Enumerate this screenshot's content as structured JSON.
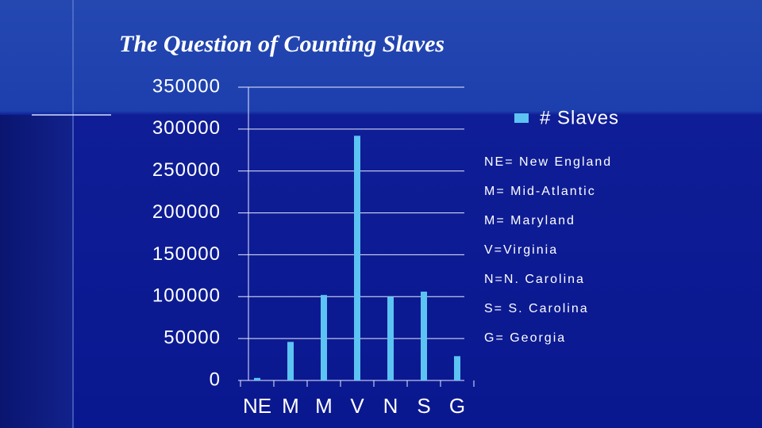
{
  "chart_data": {
    "type": "bar",
    "title": "The Question of Counting Slaves",
    "categories": [
      "NE",
      "M",
      "M",
      "V",
      "N",
      "S",
      "G"
    ],
    "series": [
      {
        "name": "# Slaves",
        "color": "#5cc3f2",
        "values": [
          3000,
          46000,
          102000,
          292000,
          100000,
          106000,
          29000
        ]
      }
    ],
    "ylim": [
      0,
      350000
    ],
    "yticks": [
      0,
      50000,
      100000,
      150000,
      200000,
      250000,
      300000,
      350000
    ],
    "grid": true,
    "legend": "top-right",
    "annotations": [
      "NE= New England",
      "M= Mid-Atlantic",
      "M= Maryland",
      "V=Virginia",
      "N=N. Carolina",
      "S= S. Carolina",
      "G= Georgia"
    ]
  }
}
